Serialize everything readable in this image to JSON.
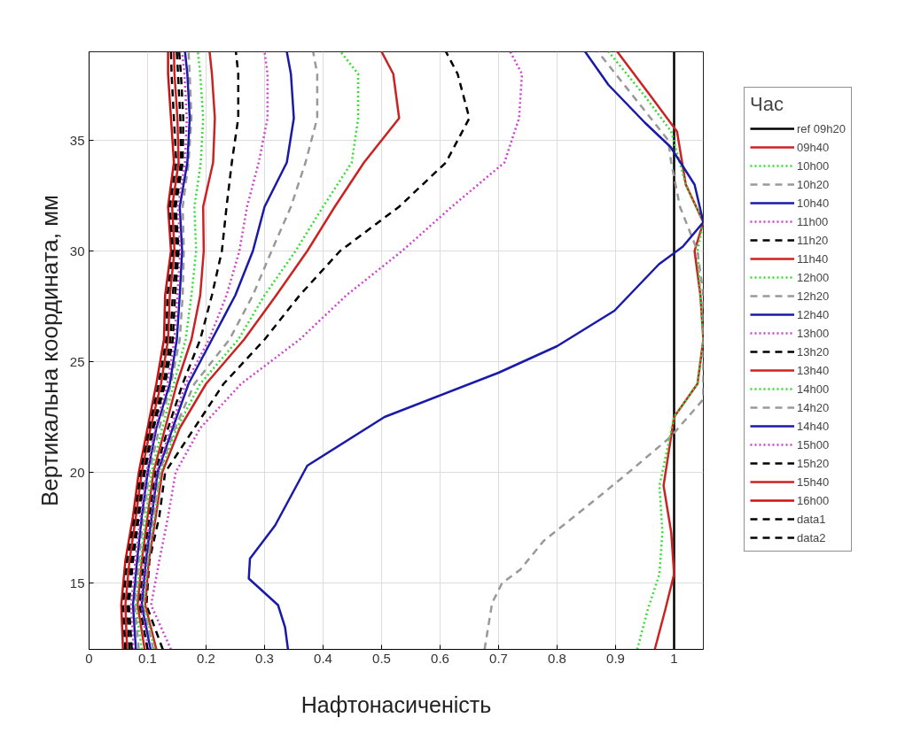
{
  "chart_data": {
    "type": "line",
    "xlabel": "Нафтонасиченість",
    "ylabel": "Вертикальна координата, мм",
    "legend_title": "Час",
    "xlim": [
      0,
      1.05
    ],
    "ylim": [
      12,
      39
    ],
    "xticks": [
      0,
      0.1,
      0.2,
      0.3,
      0.4,
      0.5,
      0.6,
      0.7,
      0.8,
      0.9,
      1
    ],
    "yticks": [
      15,
      20,
      25,
      30,
      35
    ],
    "grid": true,
    "legend": "right",
    "marker": "none",
    "series": [
      {
        "name": "ref 09h20",
        "color": "#000000",
        "line_style": "solid",
        "x": [
          1,
          1
        ],
        "values": [
          12,
          39
        ]
      },
      {
        "name": "09h40",
        "color": "#cc2222",
        "line_style": "solid",
        "x": [
          0.967,
          0.985,
          1.0,
          0.995,
          0.982,
          1.0,
          1.04,
          1.05,
          1.045,
          1.035,
          1.05,
          1.02,
          1.005,
          0.96,
          0.903
        ],
        "values": [
          12,
          13.8,
          15.4,
          17.3,
          19.4,
          22.5,
          24,
          26,
          28,
          30,
          31.3,
          33,
          35.4,
          37,
          39
        ]
      },
      {
        "name": "10h00",
        "color": "#33dd33",
        "line_style": "dotted",
        "x": [
          0.937,
          0.955,
          0.975,
          0.98,
          0.975,
          1.0,
          1.04,
          1.05,
          1.045,
          1.04,
          1.05,
          1.02,
          0.995,
          0.95,
          0.888
        ],
        "values": [
          12,
          13.8,
          15.4,
          17.3,
          19.4,
          22.5,
          24,
          26,
          28,
          30,
          31.3,
          33,
          35.4,
          37,
          39
        ]
      },
      {
        "name": "10h20",
        "color": "#999999",
        "line_style": "dashed",
        "x": [
          0.676,
          0.689,
          0.706,
          0.737,
          0.777,
          0.853,
          0.918,
          0.994,
          1.05,
          1.05,
          1.05,
          1.04,
          1.01,
          0.995,
          0.99,
          0.93,
          0.87
        ],
        "values": [
          12,
          14.1,
          15,
          15.6,
          16.9,
          18.5,
          19.9,
          21.6,
          23.3,
          26,
          28,
          30,
          32,
          34,
          35,
          37,
          39
        ]
      },
      {
        "name": "10h40",
        "color": "#1a1aaa",
        "line_style": "solid",
        "x": [
          0.34,
          0.335,
          0.323,
          0.273,
          0.275,
          0.318,
          0.373,
          0.505,
          0.7,
          0.8,
          0.898,
          0.974,
          1.015,
          1.05,
          1.035,
          0.994,
          0.95,
          0.888,
          0.848
        ],
        "values": [
          12,
          13,
          14,
          15.2,
          16.1,
          17.6,
          20.3,
          22.5,
          24.5,
          25.7,
          27.3,
          29.4,
          30.2,
          31.3,
          33,
          34.7,
          35.8,
          37.5,
          39
        ]
      },
      {
        "name": "11h00",
        "color": "#cc44cc",
        "line_style": "dotted",
        "x": [
          0.14,
          0.106,
          0.12,
          0.135,
          0.148,
          0.19,
          0.26,
          0.36,
          0.44,
          0.535,
          0.62,
          0.71,
          0.735,
          0.74,
          0.72
        ],
        "values": [
          12,
          14,
          16,
          18,
          20,
          22,
          24,
          26,
          28,
          30,
          32,
          34,
          36,
          38,
          39
        ]
      },
      {
        "name": "11h20",
        "color": "#000000",
        "line_style": "dashed",
        "x": [
          0.126,
          0.098,
          0.103,
          0.12,
          0.13,
          0.18,
          0.23,
          0.3,
          0.36,
          0.429,
          0.53,
          0.61,
          0.65,
          0.63,
          0.61
        ],
        "values": [
          12,
          14,
          16,
          18,
          20,
          22,
          24,
          26,
          28,
          30,
          32,
          34,
          36,
          38,
          39
        ]
      },
      {
        "name": "11h40",
        "color": "#cc2222",
        "line_style": "solid",
        "x": [
          0.115,
          0.096,
          0.102,
          0.114,
          0.125,
          0.155,
          0.2,
          0.265,
          0.32,
          0.373,
          0.42,
          0.47,
          0.53,
          0.52,
          0.5
        ],
        "values": [
          12,
          14,
          16,
          18,
          20,
          22,
          24,
          26,
          28,
          30,
          32,
          34,
          36,
          38,
          39
        ]
      },
      {
        "name": "12h00",
        "color": "#33dd33",
        "line_style": "dotted",
        "x": [
          0.112,
          0.094,
          0.1,
          0.112,
          0.122,
          0.15,
          0.19,
          0.255,
          0.3,
          0.353,
          0.4,
          0.449,
          0.46,
          0.46,
          0.43
        ],
        "values": [
          12,
          14,
          16,
          18,
          20,
          22,
          24,
          26,
          28,
          30,
          32,
          34,
          36,
          38,
          39
        ]
      },
      {
        "name": "12h20",
        "color": "#999999",
        "line_style": "dashed",
        "x": [
          0.11,
          0.092,
          0.1,
          0.11,
          0.12,
          0.147,
          0.18,
          0.24,
          0.28,
          0.312,
          0.345,
          0.37,
          0.39,
          0.39,
          0.383
        ],
        "values": [
          12,
          14,
          16,
          18,
          20,
          22,
          24,
          26,
          28,
          30,
          32,
          34,
          36,
          38,
          39
        ]
      },
      {
        "name": "12h40",
        "color": "#1a1aaa",
        "line_style": "solid",
        "x": [
          0.105,
          0.09,
          0.097,
          0.107,
          0.117,
          0.143,
          0.17,
          0.21,
          0.25,
          0.28,
          0.3,
          0.338,
          0.35,
          0.345,
          0.338
        ],
        "values": [
          12,
          14,
          16,
          18,
          20,
          22,
          24,
          26,
          28,
          30,
          32,
          34,
          36,
          38,
          39
        ]
      },
      {
        "name": "13h00",
        "color": "#cc44cc",
        "line_style": "dotted",
        "x": [
          0.102,
          0.088,
          0.095,
          0.105,
          0.115,
          0.14,
          0.165,
          0.205,
          0.235,
          0.257,
          0.27,
          0.29,
          0.305,
          0.305,
          0.3
        ],
        "values": [
          12,
          14,
          16,
          18,
          20,
          22,
          24,
          26,
          28,
          30,
          32,
          34,
          36,
          38,
          39
        ]
      },
      {
        "name": "13h20",
        "color": "#000000",
        "line_style": "dashed",
        "x": [
          0.1,
          0.086,
          0.093,
          0.103,
          0.113,
          0.135,
          0.16,
          0.19,
          0.21,
          0.227,
          0.235,
          0.244,
          0.255,
          0.255,
          0.251
        ],
        "values": [
          12,
          14,
          16,
          18,
          20,
          22,
          24,
          26,
          28,
          30,
          32,
          34,
          36,
          38,
          39
        ]
      },
      {
        "name": "13h40",
        "color": "#cc2222",
        "line_style": "solid",
        "x": [
          0.095,
          0.083,
          0.09,
          0.1,
          0.11,
          0.13,
          0.15,
          0.175,
          0.19,
          0.196,
          0.195,
          0.212,
          0.215,
          0.21,
          0.206
        ],
        "values": [
          12,
          14,
          16,
          18,
          20,
          22,
          24,
          26,
          28,
          30,
          32,
          34,
          36,
          38,
          39
        ]
      },
      {
        "name": "14h00",
        "color": "#33dd33",
        "line_style": "dotted",
        "x": [
          0.09,
          0.08,
          0.088,
          0.097,
          0.107,
          0.125,
          0.145,
          0.165,
          0.175,
          0.183,
          0.18,
          0.191,
          0.195,
          0.19,
          0.186
        ],
        "values": [
          12,
          14,
          16,
          18,
          20,
          22,
          24,
          26,
          28,
          30,
          32,
          34,
          36,
          38,
          39
        ]
      },
      {
        "name": "14h20",
        "color": "#999999",
        "line_style": "dashed",
        "x": [
          0.085,
          0.078,
          0.085,
          0.093,
          0.103,
          0.12,
          0.14,
          0.155,
          0.16,
          0.162,
          0.16,
          0.17,
          0.175,
          0.172,
          0.17
        ],
        "values": [
          12,
          14,
          16,
          18,
          20,
          22,
          24,
          26,
          28,
          30,
          32,
          34,
          36,
          38,
          39
        ]
      },
      {
        "name": "14h40",
        "color": "#1a1aaa",
        "line_style": "solid",
        "x": [
          0.08,
          0.075,
          0.082,
          0.09,
          0.1,
          0.115,
          0.138,
          0.15,
          0.155,
          0.159,
          0.155,
          0.168,
          0.172,
          0.168,
          0.164
        ],
        "values": [
          12,
          14,
          16,
          18,
          20,
          22,
          24,
          26,
          28,
          30,
          32,
          34,
          36,
          38,
          39
        ]
      },
      {
        "name": "15h00",
        "color": "#cc44cc",
        "line_style": "dotted",
        "x": [
          0.076,
          0.072,
          0.079,
          0.088,
          0.098,
          0.113,
          0.134,
          0.146,
          0.151,
          0.156,
          0.152,
          0.164,
          0.167,
          0.163,
          0.159
        ],
        "values": [
          12,
          14,
          16,
          18,
          20,
          22,
          24,
          26,
          28,
          30,
          32,
          34,
          36,
          38,
          39
        ]
      },
      {
        "name": "15h20",
        "color": "#000000",
        "line_style": "dashed",
        "x": [
          0.069,
          0.065,
          0.072,
          0.083,
          0.093,
          0.108,
          0.127,
          0.139,
          0.143,
          0.15,
          0.145,
          0.157,
          0.156,
          0.152,
          0.15
        ],
        "values": [
          12,
          14,
          16,
          18,
          20,
          22,
          24,
          26,
          28,
          30,
          32,
          34,
          36,
          38,
          39
        ]
      },
      {
        "name": "15h40",
        "color": "#cc2222",
        "line_style": "solid",
        "x": [
          0.065,
          0.062,
          0.069,
          0.08,
          0.09,
          0.105,
          0.123,
          0.135,
          0.138,
          0.146,
          0.142,
          0.153,
          0.151,
          0.146,
          0.145
        ],
        "values": [
          12,
          14,
          16,
          18,
          20,
          22,
          24,
          26,
          28,
          30,
          32,
          34,
          36,
          38,
          39
        ]
      },
      {
        "name": "16h00",
        "color": "#cc1111",
        "line_style": "solid",
        "x": [
          0.058,
          0.055,
          0.062,
          0.075,
          0.085,
          0.1,
          0.115,
          0.128,
          0.13,
          0.14,
          0.135,
          0.145,
          0.14,
          0.135,
          0.135
        ],
        "values": [
          12,
          14,
          16,
          18,
          20,
          22,
          24,
          26,
          28,
          30,
          32,
          34,
          36,
          38,
          39
        ]
      },
      {
        "name": "data1",
        "color": "#000000",
        "line_style": "dashed",
        "x": [
          0.062,
          0.058,
          0.065,
          0.078,
          0.088,
          0.103,
          0.119,
          0.132,
          0.134,
          0.143,
          0.138,
          0.149,
          0.145,
          0.141,
          0.14
        ],
        "values": [
          12,
          14,
          16,
          18,
          20,
          22,
          24,
          26,
          28,
          30,
          32,
          34,
          36,
          38,
          39
        ]
      },
      {
        "name": "data2",
        "color": "#000000",
        "line_style": "dashed",
        "x": [
          0.073,
          0.068,
          0.075,
          0.085,
          0.095,
          0.11,
          0.13,
          0.143,
          0.147,
          0.153,
          0.148,
          0.16,
          0.161,
          0.157,
          0.154
        ],
        "values": [
          12,
          14,
          16,
          18,
          20,
          22,
          24,
          26,
          28,
          30,
          32,
          34,
          36,
          38,
          39
        ]
      }
    ]
  }
}
